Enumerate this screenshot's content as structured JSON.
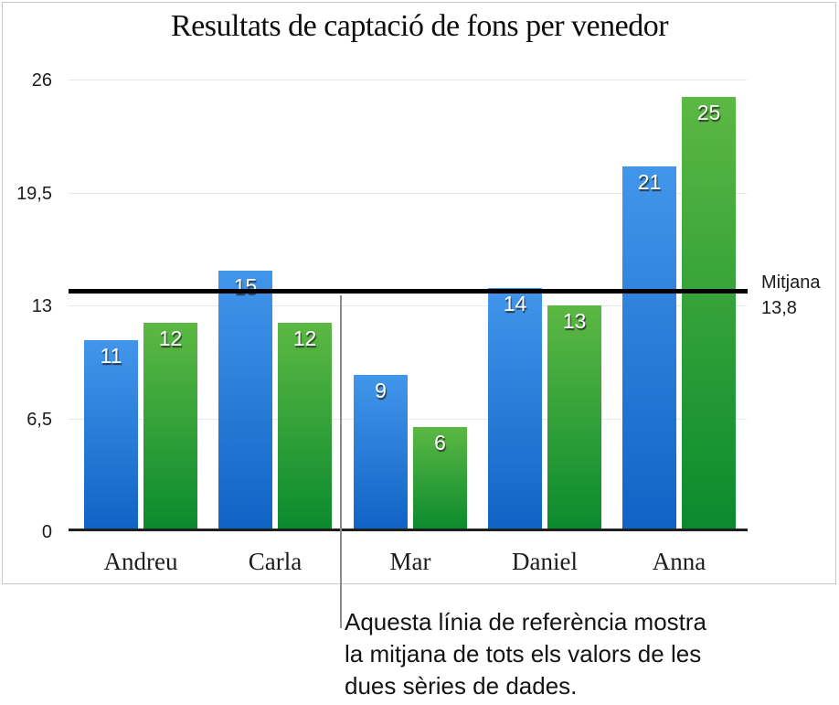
{
  "chart_data": {
    "type": "bar",
    "title": "Resultats de captació de fons per venedor",
    "categories": [
      "Andreu",
      "Carla",
      "Mar",
      "Daniel",
      "Anna"
    ],
    "series": [
      {
        "name": "blue-series",
        "color_top": "#4296ea",
        "color_bottom": "#1063c5",
        "values": [
          11,
          15,
          9,
          14,
          21
        ]
      },
      {
        "name": "green-series",
        "color_top": "#5cb843",
        "color_bottom": "#0a8a2e",
        "values": [
          12,
          12,
          6,
          13,
          25
        ]
      }
    ],
    "value_label_color": "#ffffff",
    "ylim": [
      0,
      26
    ],
    "yticks": [
      {
        "value": 0,
        "label": "0"
      },
      {
        "value": 6.5,
        "label": "6,5"
      },
      {
        "value": 13,
        "label": "13"
      },
      {
        "value": 19.5,
        "label": "19,5"
      },
      {
        "value": 26,
        "label": "26"
      }
    ],
    "grid": true,
    "legend": "none",
    "reference_line": {
      "value": 13.8,
      "label": "Mitjana",
      "value_label": "13,8",
      "color": "#000000"
    }
  },
  "callout": {
    "lines": [
      "Aquesta línia de referència mostra",
      "la mitjana de tots els valors de les",
      "dues sèries de dades."
    ],
    "line_color": "#8c8c8c"
  }
}
